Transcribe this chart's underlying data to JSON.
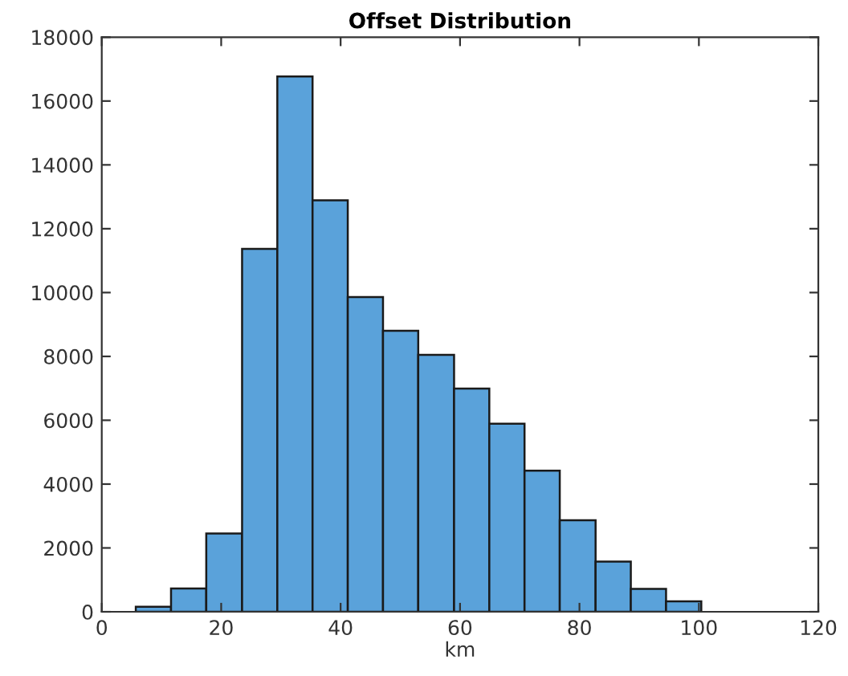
{
  "chart_data": {
    "type": "histogram",
    "title": "Offset Distribution",
    "xlabel": "km",
    "bins": [
      5.7,
      11.6,
      17.5,
      23.5,
      29.4,
      35.3,
      41.2,
      47.1,
      53.0,
      59.0,
      64.9,
      70.8,
      76.7,
      82.7,
      88.6,
      94.5,
      100.4
    ],
    "values": [
      160,
      730,
      2450,
      11370,
      16770,
      12890,
      9860,
      8800,
      8050,
      6990,
      5890,
      4420,
      2870,
      1570,
      720,
      330
    ],
    "color": "#5aa2da",
    "xlim": [
      0,
      120
    ],
    "xticks": [
      0,
      20,
      40,
      60,
      80,
      100,
      120
    ],
    "ylim": [
      0,
      18000
    ],
    "yticks": [
      0,
      2000,
      4000,
      6000,
      8000,
      10000,
      12000,
      14000,
      16000,
      18000
    ],
    "grid": false
  }
}
